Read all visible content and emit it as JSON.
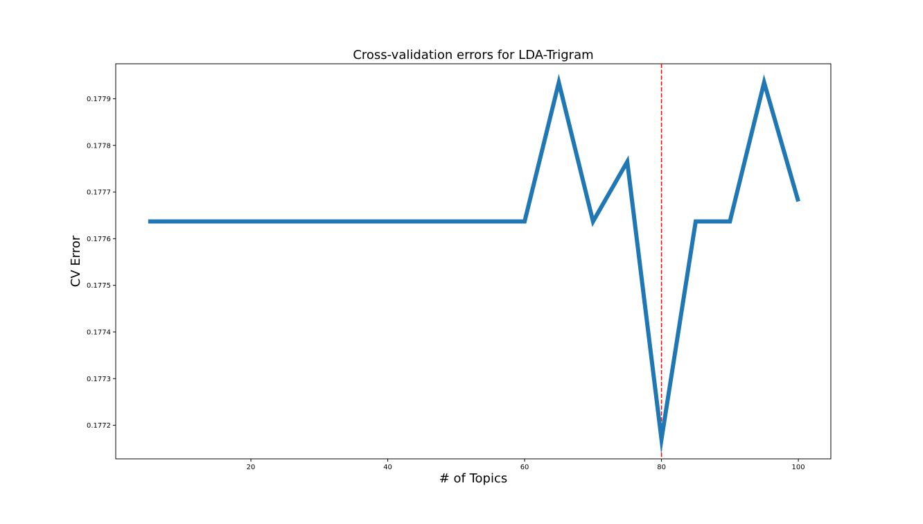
{
  "chart_data": {
    "type": "line",
    "title": "Cross-validation errors for LDA-Trigram",
    "xlabel": "# of Topics",
    "ylabel": "CV Error",
    "xlim": [
      0.25,
      104.75
    ],
    "ylim": [
      0.177128,
      0.177975
    ],
    "x_ticks": [
      20,
      40,
      60,
      80,
      100
    ],
    "x_tick_labels": [
      "20",
      "40",
      "60",
      "80",
      100
    ],
    "y_ticks": [
      0.1772,
      0.1773,
      0.1774,
      0.1775,
      0.1776,
      0.1777,
      0.1778,
      0.1779
    ],
    "y_tick_labels": [
      "0.1772",
      "0.1773",
      "0.1774",
      "0.1775",
      "0.1776",
      "0.1777",
      "0.1778",
      "0.1779"
    ],
    "grid": false,
    "series": [
      {
        "color": "#1f77b4",
        "x": [
          5,
          10,
          15,
          20,
          25,
          30,
          35,
          40,
          45,
          50,
          55,
          60,
          65,
          70,
          75,
          80,
          85,
          90,
          95,
          100
        ],
        "y": [
          0.177637,
          0.177637,
          0.177637,
          0.177637,
          0.177637,
          0.177637,
          0.177637,
          0.177637,
          0.177637,
          0.177637,
          0.177637,
          0.177637,
          0.177935,
          0.177637,
          0.177765,
          0.17717,
          0.177637,
          0.177637,
          0.177935,
          0.17768
        ]
      }
    ],
    "reference_lines": [
      {
        "axis": "x",
        "value": 80,
        "color": "#ff0000",
        "style": "dashed"
      }
    ]
  }
}
